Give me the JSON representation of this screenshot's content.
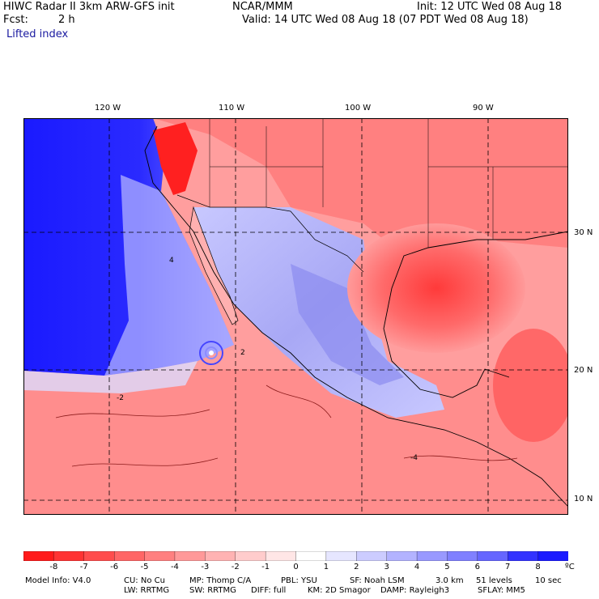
{
  "header": {
    "title": "HIWC Radar II 3km ARW-GFS init",
    "org": "NCAR/MMM",
    "init": "Init: 12 UTC Wed 08 Aug 18",
    "fcst_label": "Fcst:",
    "fcst_value": "2 h",
    "valid": "Valid: 14 UTC Wed 08 Aug 18 (07 PDT Wed 08 Aug 18)",
    "field": "Lifted index"
  },
  "map": {
    "lon_labels": [
      "120 W",
      "110 W",
      "100 W",
      "90 W"
    ],
    "lat_labels": [
      "30 N",
      "20 N",
      "10 N"
    ],
    "contour_labels": [
      "-2",
      "-4",
      "4",
      "2"
    ]
  },
  "colorbar": {
    "ticks": [
      "-8",
      "-7",
      "-6",
      "-5",
      "-4",
      "-3",
      "-2",
      "-1",
      "0",
      "1",
      "2",
      "3",
      "4",
      "5",
      "6",
      "7",
      "8"
    ],
    "unit": "ºC",
    "colors": [
      "#ff1a1a",
      "#ff3333",
      "#ff4d4d",
      "#ff6666",
      "#ff8080",
      "#ff9999",
      "#ffb3b3",
      "#ffcccc",
      "#ffe6e6",
      "#ffffff",
      "#e6e6ff",
      "#ccccff",
      "#b3b3ff",
      "#9999ff",
      "#8080ff",
      "#6666ff",
      "#3333ff",
      "#1a1aff"
    ]
  },
  "footer": {
    "line1": [
      "Model Info: V4.0",
      "CU: No Cu",
      "MP: Thomp C/A",
      "PBL: YSU",
      "SF: Noah LSM",
      "3.0 km",
      "51 levels",
      "10 sec"
    ],
    "line2": [
      "LW: RRTMG",
      "SW: RRTMG",
      "DIFF: full",
      "KM: 2D Smagor",
      "DAMP: Rayleigh3",
      "SFLAY: MM5"
    ]
  }
}
